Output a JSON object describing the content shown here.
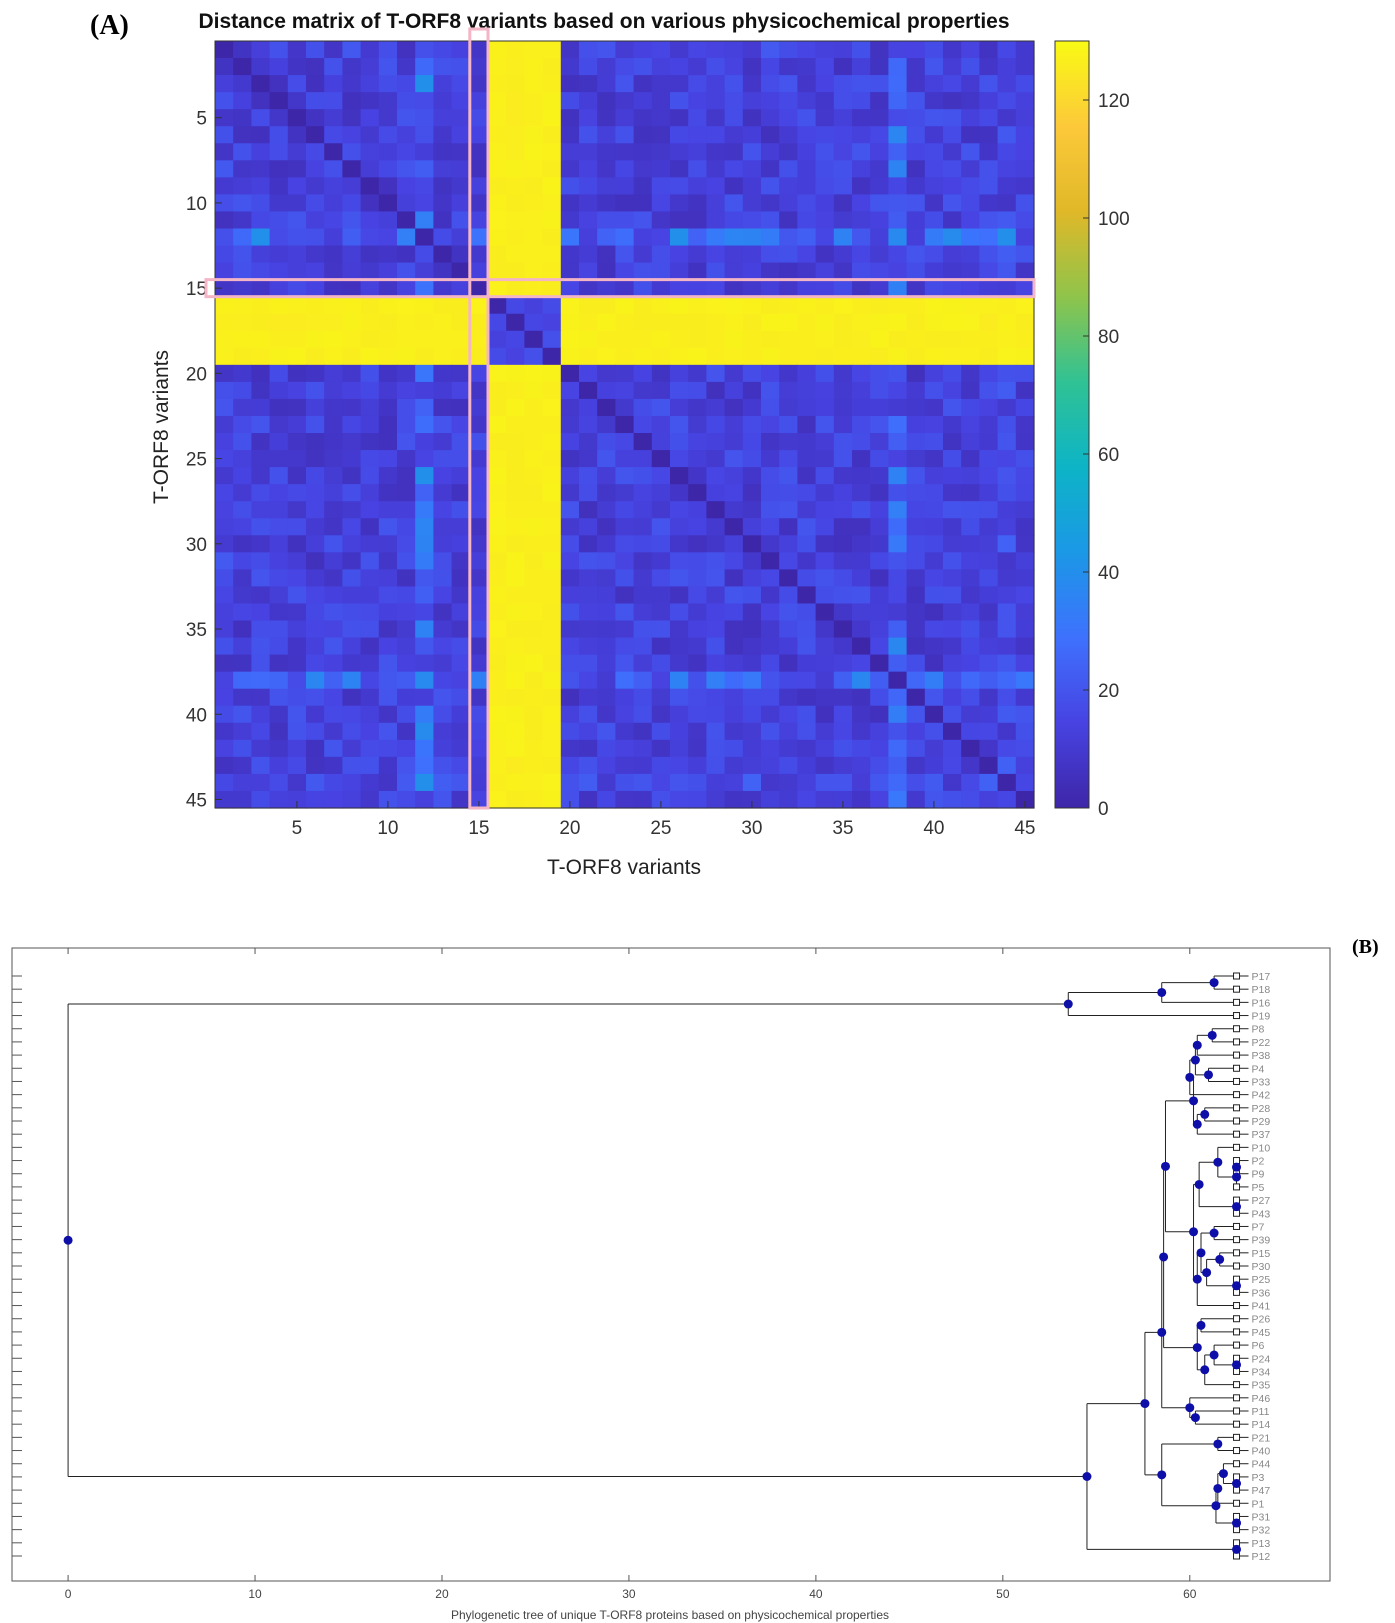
{
  "panel_a_label": "(A)",
  "panel_b_label": "(B)",
  "chart_data": [
    {
      "type": "heatmap",
      "title": "Distance matrix of T-ORF8 variants based on various physicochemical properties",
      "xlabel": "T-ORF8 variants",
      "ylabel": "T-ORF8 variants",
      "n": 45,
      "xticks": [
        5,
        10,
        15,
        20,
        25,
        30,
        35,
        40,
        45
      ],
      "yticks": [
        5,
        10,
        15,
        20,
        25,
        30,
        35,
        40,
        45
      ],
      "value_range": [
        0,
        130
      ],
      "colorbar_ticks": [
        0,
        20,
        40,
        60,
        80,
        100,
        120
      ],
      "colormap": [
        "#3e26a8",
        "#4743e2",
        "#3e71fe",
        "#1b98e6",
        "#0db4c6",
        "#30c294",
        "#8fc44b",
        "#e0b828",
        "#fcc93a",
        "#f9fa14"
      ],
      "outlier_indices": [
        16,
        17,
        18,
        19
      ],
      "outlier_block_value": 12,
      "outlier_vs_others_value": 128,
      "typical_distance": 15,
      "highlighted_index": 15,
      "highlight_color": "#f4b6c6",
      "elevated_profiles": {
        "12": 30,
        "38": 28,
        "1": 16,
        "44": 18
      }
    },
    {
      "type": "dendrogram",
      "xlabel": "Phylogenetic tree of unique T-ORF8 proteins based on physicochemical properties",
      "xticks": [
        0,
        10,
        20,
        30,
        40,
        50,
        60
      ],
      "xlim": [
        -3,
        67.5
      ],
      "node_color": "#0e0ea8",
      "leaves": [
        "P17",
        "P18",
        "P16",
        "P19",
        "P8",
        "P22",
        "P38",
        "P4",
        "P33",
        "P42",
        "P28",
        "P29",
        "P37",
        "P10",
        "P2",
        "P9",
        "P5",
        "P27",
        "P43",
        "P7",
        "P39",
        "P15",
        "P30",
        "P25",
        "P36",
        "P41",
        "P26",
        "P45",
        "P6",
        "P24",
        "P34",
        "P35",
        "P46",
        "P11",
        "P14",
        "P21",
        "P40",
        "P44",
        "P3",
        "P47",
        "P1",
        "P31",
        "P32",
        "P13",
        "P12"
      ]
    }
  ]
}
